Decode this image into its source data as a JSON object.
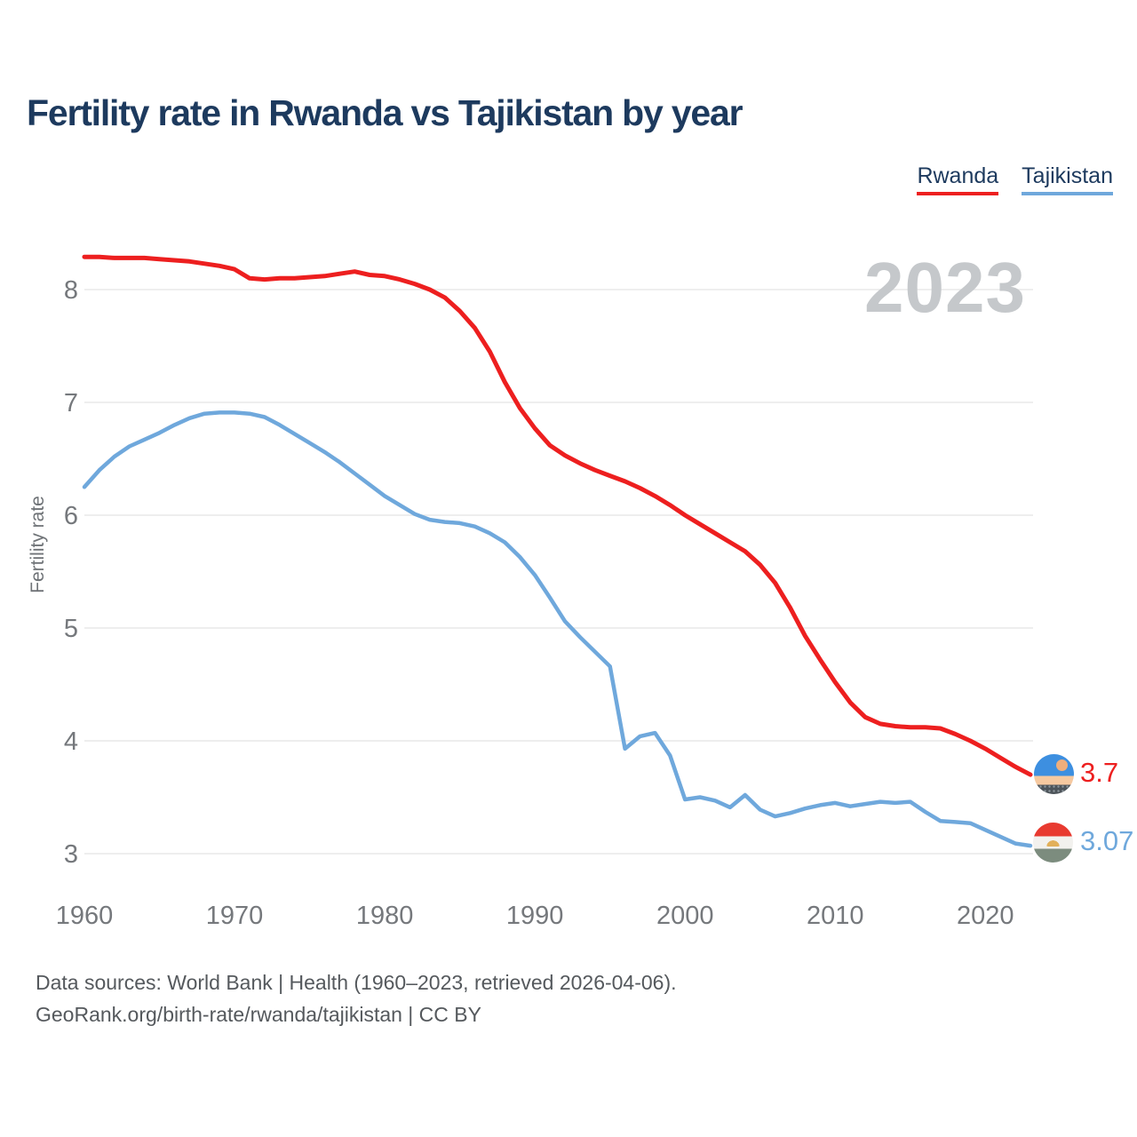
{
  "title": "Fertility rate in Rwanda vs Tajikistan by year",
  "watermark": "2023",
  "legend": [
    {
      "label": "Rwanda",
      "color": "#ed1f1f"
    },
    {
      "label": "Tajikistan",
      "color": "#6fa8dc"
    }
  ],
  "footer": {
    "line1": "Data sources: World Bank | Health (1960–2023, retrieved 2026-04-06).",
    "line2": "GeoRank.org/birth-rate/rwanda/tajikistan | CC BY"
  },
  "icons": {
    "rwanda_flag": "rwanda-flag-icon",
    "tajikistan_flag": "tajikistan-flag-icon"
  },
  "chart_data": {
    "type": "line",
    "title": "Fertility rate in Rwanda vs Tajikistan by year",
    "xlabel": "",
    "ylabel": "Fertility rate",
    "x_ticks": [
      1960,
      1970,
      1980,
      1990,
      2000,
      2010,
      2020
    ],
    "y_ticks": [
      8,
      7,
      6,
      5,
      4,
      3
    ],
    "xlim": [
      1960,
      2023
    ],
    "ylim": [
      2.9,
      8.4
    ],
    "grid": "horizontal",
    "legend_position": "top-right",
    "x": [
      1960,
      1961,
      1962,
      1963,
      1964,
      1965,
      1966,
      1967,
      1968,
      1969,
      1970,
      1971,
      1972,
      1973,
      1974,
      1975,
      1976,
      1977,
      1978,
      1979,
      1980,
      1981,
      1982,
      1983,
      1984,
      1985,
      1986,
      1987,
      1988,
      1989,
      1990,
      1991,
      1992,
      1993,
      1994,
      1995,
      1996,
      1997,
      1998,
      1999,
      2000,
      2001,
      2002,
      2003,
      2004,
      2005,
      2006,
      2007,
      2008,
      2009,
      2010,
      2011,
      2012,
      2013,
      2014,
      2015,
      2016,
      2017,
      2018,
      2019,
      2020,
      2021,
      2022,
      2023
    ],
    "series": [
      {
        "name": "Rwanda",
        "color": "#ed1f1f",
        "end_label": "3.7",
        "end_value": 3.7,
        "values": [
          8.29,
          8.29,
          8.28,
          8.28,
          8.28,
          8.27,
          8.26,
          8.25,
          8.23,
          8.21,
          8.18,
          8.1,
          8.09,
          8.1,
          8.1,
          8.11,
          8.12,
          8.14,
          8.16,
          8.13,
          8.12,
          8.09,
          8.05,
          8.0,
          7.93,
          7.81,
          7.66,
          7.45,
          7.18,
          6.95,
          6.77,
          6.62,
          6.53,
          6.46,
          6.4,
          6.35,
          6.3,
          6.24,
          6.17,
          6.09,
          6.0,
          5.92,
          5.84,
          5.76,
          5.68,
          5.56,
          5.4,
          5.18,
          4.93,
          4.72,
          4.52,
          4.34,
          4.21,
          4.15,
          4.13,
          4.12,
          4.12,
          4.11,
          4.06,
          4.0,
          3.93,
          3.85,
          3.77,
          3.7
        ]
      },
      {
        "name": "Tajikistan",
        "color": "#6fa8dc",
        "end_label": "3.07",
        "end_value": 3.07,
        "values": [
          6.25,
          6.4,
          6.52,
          6.61,
          6.67,
          6.73,
          6.8,
          6.86,
          6.9,
          6.91,
          6.91,
          6.9,
          6.87,
          6.8,
          6.72,
          6.64,
          6.56,
          6.47,
          6.37,
          6.27,
          6.17,
          6.09,
          6.01,
          5.96,
          5.94,
          5.93,
          5.9,
          5.84,
          5.76,
          5.63,
          5.47,
          5.27,
          5.06,
          4.92,
          4.79,
          4.66,
          3.93,
          4.04,
          4.07,
          3.87,
          3.48,
          3.5,
          3.47,
          3.41,
          3.52,
          3.39,
          3.33,
          3.36,
          3.4,
          3.43,
          3.45,
          3.42,
          3.44,
          3.46,
          3.45,
          3.46,
          3.37,
          3.29,
          3.28,
          3.27,
          3.21,
          3.15,
          3.09,
          3.07
        ]
      }
    ]
  }
}
